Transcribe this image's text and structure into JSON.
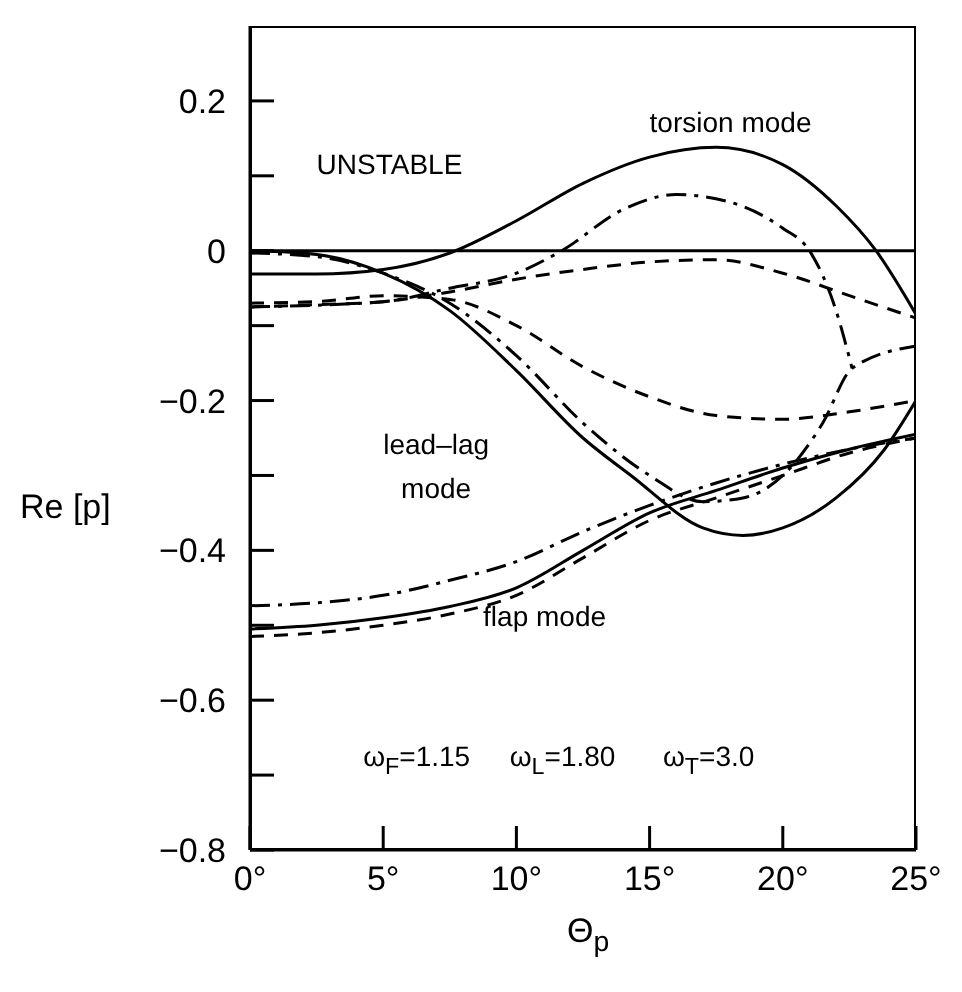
{
  "chart_data": {
    "type": "line",
    "xlabel": "Θ$_{p}$",
    "ylabel": "Re [p]",
    "xlim": [
      0,
      25
    ],
    "ylim": [
      -0.8,
      0.3
    ],
    "xticks": [
      {
        "value": 0,
        "label": "0°"
      },
      {
        "value": 5,
        "label": "5°"
      },
      {
        "value": 10,
        "label": "10°"
      },
      {
        "value": 15,
        "label": "15°"
      },
      {
        "value": 20,
        "label": "20°"
      },
      {
        "value": 25,
        "label": "25°"
      }
    ],
    "yticks": [
      {
        "value": -0.8,
        "label": "−0.8"
      },
      {
        "value": -0.7,
        "label": null
      },
      {
        "value": -0.6,
        "label": "−0.6"
      },
      {
        "value": -0.5,
        "label": null
      },
      {
        "value": -0.4,
        "label": "−0.4"
      },
      {
        "value": -0.3,
        "label": null
      },
      {
        "value": -0.2,
        "label": "−0.2"
      },
      {
        "value": -0.1,
        "label": null
      },
      {
        "value": 0,
        "label": "0"
      },
      {
        "value": 0.1,
        "label": null
      },
      {
        "value": 0.2,
        "label": "0.2"
      }
    ],
    "marker": "none",
    "ref_lines": [
      {
        "axis": "y",
        "value": 0,
        "color": "#000000"
      }
    ],
    "annotations": [
      "UNSTABLE",
      "torsion mode",
      "lead–lag\nmode",
      "flap mode",
      "ω$_{F}$=1.15",
      "ω$_{L}$=1.80",
      "ω$_{T}$=3.0"
    ],
    "series": [
      {
        "color": "#000000",
        "line_style": "solid",
        "x": [
          0,
          2.5,
          5,
          7.5,
          10,
          12.5,
          15,
          17.5,
          20,
          22,
          23.5,
          25
        ],
        "values": [
          -0.031,
          -0.031,
          -0.025,
          -0.003,
          0.04,
          0.09,
          0.125,
          0.138,
          0.115,
          0.06,
          0,
          -0.085
        ]
      },
      {
        "color": "#000000",
        "line_style": "dashdot",
        "x": [
          0,
          5,
          7.5,
          10,
          11.7,
          14,
          16,
          18,
          20,
          21,
          22,
          22.6
        ],
        "values": [
          -0.075,
          -0.068,
          -0.05,
          -0.03,
          0,
          0.055,
          0.075,
          0.065,
          0.03,
          0,
          -0.08,
          -0.157
        ]
      },
      {
        "color": "#000000",
        "line_style": "dashed",
        "x": [
          0,
          2.5,
          5,
          7.5,
          10,
          12.5,
          15,
          17.5,
          20,
          22.5,
          25
        ],
        "values": [
          -0.075,
          -0.072,
          -0.068,
          -0.055,
          -0.038,
          -0.025,
          -0.015,
          -0.012,
          -0.03,
          -0.06,
          -0.09
        ]
      },
      {
        "color": "#000000",
        "line_style": "solid",
        "x": [
          0,
          2.5,
          5,
          7.5,
          10,
          12.5,
          14.3,
          17,
          18.5,
          20,
          22,
          23.8,
          25
        ],
        "values": [
          0,
          -0.005,
          -0.03,
          -0.08,
          -0.16,
          -0.25,
          -0.3,
          -0.37,
          -0.38,
          -0.37,
          -0.33,
          -0.266,
          -0.2
        ]
      },
      {
        "color": "#000000",
        "line_style": "dashdot",
        "x": [
          0,
          2.5,
          5,
          7.5,
          10,
          12.5,
          15,
          17,
          18.5,
          20,
          21.5,
          22.6,
          25
        ],
        "values": [
          -0.003,
          -0.008,
          -0.03,
          -0.07,
          -0.14,
          -0.23,
          -0.3,
          -0.335,
          -0.33,
          -0.3,
          -0.23,
          -0.157,
          -0.127
        ]
      },
      {
        "color": "#000000",
        "line_style": "dashed",
        "x": [
          0,
          2.5,
          5,
          7.5,
          10,
          12.5,
          15,
          17.5,
          20,
          22.5,
          25
        ],
        "values": [
          -0.07,
          -0.068,
          -0.06,
          -0.065,
          -0.1,
          -0.155,
          -0.195,
          -0.22,
          -0.225,
          -0.215,
          -0.2
        ]
      },
      {
        "color": "#000000",
        "line_style": "solid",
        "x": [
          0,
          2.5,
          5,
          7.5,
          10,
          12.5,
          15,
          17.5,
          20,
          22.5,
          25
        ],
        "values": [
          -0.505,
          -0.5,
          -0.49,
          -0.475,
          -0.45,
          -0.4,
          -0.35,
          -0.32,
          -0.29,
          -0.265,
          -0.245
        ]
      },
      {
        "color": "#000000",
        "line_style": "dashdot",
        "x": [
          0,
          2.5,
          5,
          7.5,
          10,
          12.5,
          15,
          17.5,
          20,
          22.5,
          25
        ],
        "values": [
          -0.474,
          -0.47,
          -0.46,
          -0.44,
          -0.415,
          -0.375,
          -0.34,
          -0.31,
          -0.285,
          -0.265,
          -0.25
        ]
      },
      {
        "color": "#000000",
        "line_style": "dashed",
        "x": [
          0,
          2.5,
          5,
          7.5,
          10,
          12.5,
          15,
          17.5,
          20,
          22.5,
          25
        ],
        "values": [
          -0.515,
          -0.51,
          -0.5,
          -0.485,
          -0.46,
          -0.41,
          -0.36,
          -0.33,
          -0.3,
          -0.27,
          -0.25
        ]
      }
    ]
  }
}
